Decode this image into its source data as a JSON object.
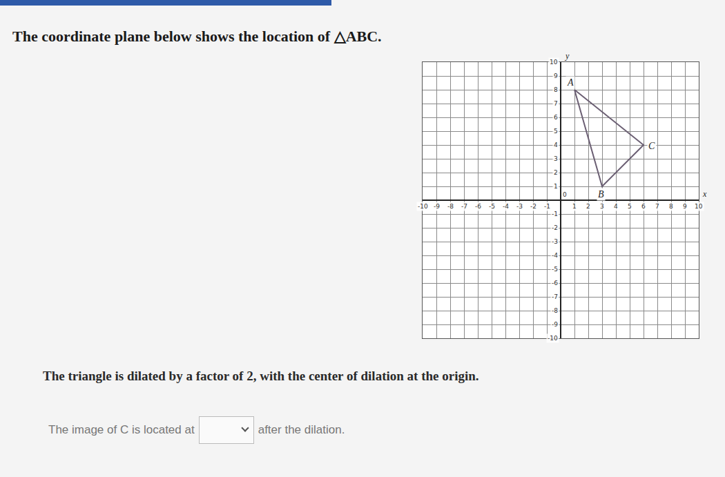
{
  "intro": "The coordinate plane below shows the location of △ABC.",
  "chart_data": {
    "type": "polygon",
    "points": [
      {
        "label": "A",
        "x": 1,
        "y": 8
      },
      {
        "label": "B",
        "x": 3,
        "y": 1
      },
      {
        "label": "C",
        "x": 6,
        "y": 4
      }
    ],
    "color": "#6b5f73",
    "xlabel": "x",
    "ylabel": "y",
    "xlim": [
      -10,
      10
    ],
    "ylim": [
      -10,
      10
    ],
    "xticks": [
      -10,
      -9,
      -8,
      -7,
      -6,
      -5,
      -4,
      -3,
      -2,
      -1,
      0,
      1,
      2,
      3,
      4,
      5,
      6,
      7,
      8,
      9,
      10
    ],
    "yticks": [
      -10,
      -9,
      -8,
      -7,
      -6,
      -5,
      -4,
      -3,
      -2,
      -1,
      0,
      1,
      2,
      3,
      4,
      5,
      6,
      7,
      8,
      9,
      10
    ],
    "grid": true
  },
  "question": "The triangle is dilated by a factor of 2, with the center of dilation at the origin.",
  "answer_before": "The image of C is located at",
  "answer_after": "after the dilation."
}
